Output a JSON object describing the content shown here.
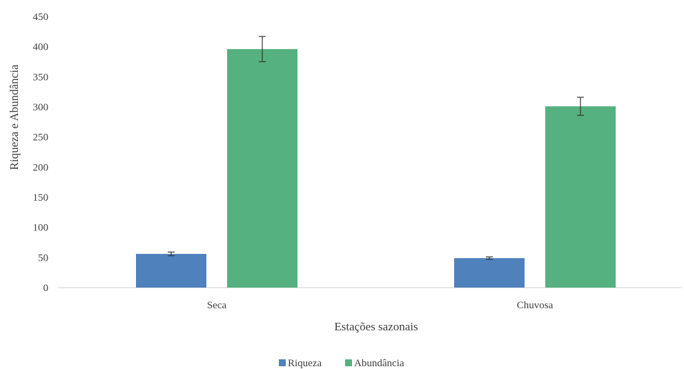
{
  "chart_data": {
    "type": "bar",
    "title": "",
    "xlabel": "Estações sazonais",
    "ylabel": "Riqueza e Abundância",
    "ylim": [
      0,
      450
    ],
    "yticks": [
      0,
      50,
      100,
      150,
      200,
      250,
      300,
      350,
      400,
      450
    ],
    "categories": [
      "Seca",
      "Chuvosa"
    ],
    "series": [
      {
        "name": "Riqueza",
        "color": "#4f81bd",
        "values": [
          56,
          49
        ],
        "errors": [
          3,
          2
        ]
      },
      {
        "name": "Abundância",
        "color": "#55b17f",
        "values": [
          396,
          301
        ],
        "errors": [
          21,
          15
        ]
      }
    ],
    "grid": false,
    "legend_position": "bottom",
    "axis_color": "#d9d9d9"
  }
}
